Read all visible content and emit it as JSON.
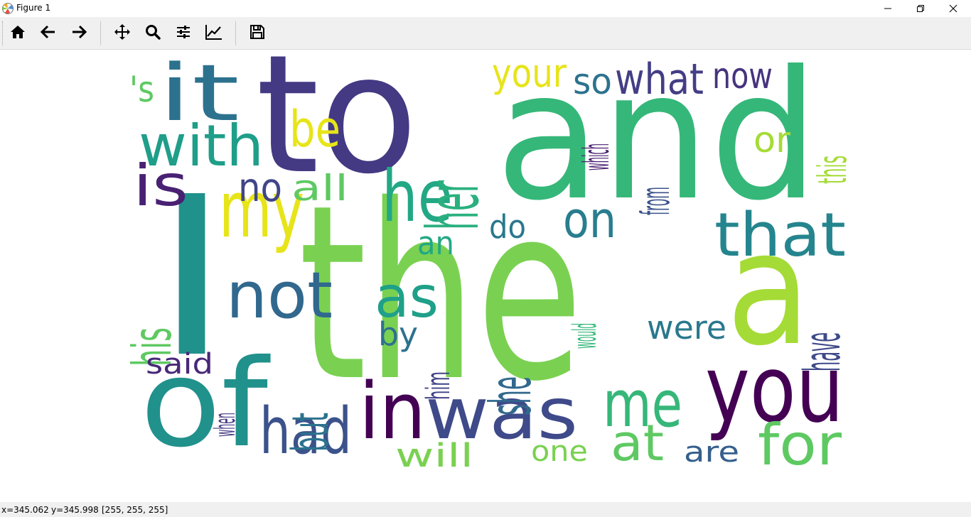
{
  "window": {
    "title": "Figure 1",
    "icon": "matplotlib-icon",
    "controls": [
      "minimize-icon",
      "maximize-icon",
      "close-icon"
    ]
  },
  "toolbar": {
    "buttons": [
      {
        "name": "home",
        "icon": "home-icon"
      },
      {
        "name": "back",
        "icon": "arrow-left-icon"
      },
      {
        "name": "forward",
        "icon": "arrow-right-icon"
      },
      {
        "name": "pan",
        "icon": "move-icon"
      },
      {
        "name": "zoom",
        "icon": "magnifier-icon"
      },
      {
        "name": "subplots",
        "icon": "sliders-icon"
      },
      {
        "name": "edit-axes",
        "icon": "line-chart-icon"
      },
      {
        "name": "save",
        "icon": "floppy-disk-icon"
      }
    ]
  },
  "wordcloud": {
    "background": "#ffffff",
    "colormap": "viridis",
    "words": [
      {
        "text": "the",
        "color": "#7ad151"
      },
      {
        "text": "and",
        "color": "#35b779"
      },
      {
        "text": "to",
        "color": "#443983"
      },
      {
        "text": "I",
        "color": "#21918c"
      },
      {
        "text": "a",
        "color": "#a5db36"
      },
      {
        "text": "of",
        "color": "#21918c"
      },
      {
        "text": "you",
        "color": "#440154"
      },
      {
        "text": "in",
        "color": "#440154"
      },
      {
        "text": "was",
        "color": "#3e4a89"
      },
      {
        "text": "it",
        "color": "#2c728e"
      },
      {
        "text": "my",
        "color": "#e7e419"
      },
      {
        "text": "he",
        "color": "#22a884"
      },
      {
        "text": "her",
        "color": "#2ab07f"
      },
      {
        "text": "that",
        "color": "#25858e"
      },
      {
        "text": "me",
        "color": "#35b779"
      },
      {
        "text": "not",
        "color": "#31688e"
      },
      {
        "text": "with",
        "color": "#1f9e89"
      },
      {
        "text": "is",
        "color": "#482173"
      },
      {
        "text": "had",
        "color": "#3b528b"
      },
      {
        "text": "for",
        "color": "#5ec962"
      },
      {
        "text": "as",
        "color": "#1fa088"
      },
      {
        "text": "she",
        "color": "#31688e"
      },
      {
        "text": "be",
        "color": "#e7e419"
      },
      {
        "text": "his",
        "color": "#5ec962"
      },
      {
        "text": "on",
        "color": "#287d8e"
      },
      {
        "text": "but",
        "color": "#2c728e"
      },
      {
        "text": "have",
        "color": "#3e4a89"
      },
      {
        "text": "at",
        "color": "#5ec962"
      },
      {
        "text": "what",
        "color": "#433e85"
      },
      {
        "text": "now",
        "color": "#46337e"
      },
      {
        "text": "so",
        "color": "#2c728e"
      },
      {
        "text": "your",
        "color": "#e7e419"
      },
      {
        "text": "this",
        "color": "#a5db36"
      },
      {
        "text": "from",
        "color": "#3b528b"
      },
      {
        "text": "which",
        "color": "#481f70"
      },
      {
        "text": "or",
        "color": "#a5db36"
      },
      {
        "text": "no",
        "color": "#404688"
      },
      {
        "text": "all",
        "color": "#5ec962"
      },
      {
        "text": "'s",
        "color": "#5ec962"
      },
      {
        "text": "an",
        "color": "#22a884"
      },
      {
        "text": "do",
        "color": "#2a788e"
      },
      {
        "text": "by",
        "color": "#2c728e"
      },
      {
        "text": "him",
        "color": "#414487"
      },
      {
        "text": "would",
        "color": "#35b779"
      },
      {
        "text": "were",
        "color": "#2a788e"
      },
      {
        "text": "said",
        "color": "#482878"
      },
      {
        "text": "when",
        "color": "#443983"
      },
      {
        "text": "will",
        "color": "#7ad151"
      },
      {
        "text": "one",
        "color": "#7ad151"
      },
      {
        "text": "are",
        "color": "#355f8d"
      }
    ]
  },
  "status": {
    "x": "x=345.062",
    "y": "y=345.998",
    "rgb": "[255, 255, 255]"
  }
}
